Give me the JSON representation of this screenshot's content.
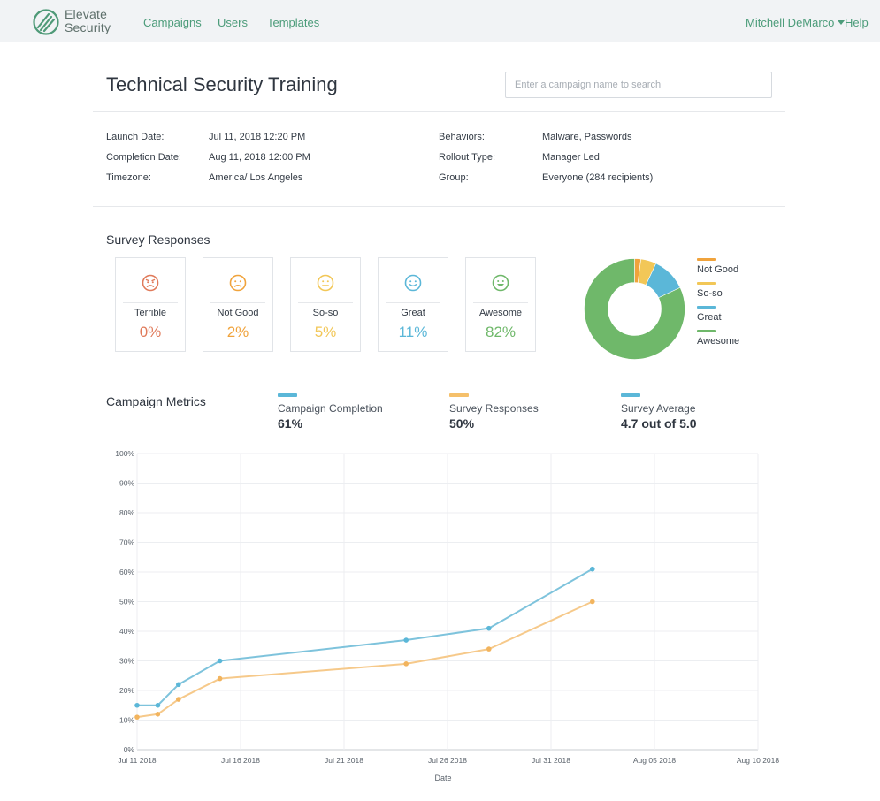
{
  "header": {
    "logo_line1": "Elevate",
    "logo_line2": "Security",
    "nav": [
      "Campaigns",
      "Users",
      "Templates"
    ],
    "user_name": "Mitchell DeMarco",
    "help": "Help"
  },
  "page": {
    "title": "Technical Security Training",
    "search_placeholder": "Enter a campaign name to search"
  },
  "details": {
    "left": [
      {
        "label": "Launch Date:",
        "value": "Jul 11, 2018 12:20 PM"
      },
      {
        "label": "Completion Date:",
        "value": "Aug 11, 2018 12:00 PM"
      },
      {
        "label": "Timezone:",
        "value": "America/ Los Angeles"
      }
    ],
    "right": [
      {
        "label": "Behaviors:",
        "value": "Malware, Passwords"
      },
      {
        "label": "Rollout Type:",
        "value": "Manager Led"
      },
      {
        "label": "Group:",
        "value": "Everyone (284 recipients)"
      }
    ]
  },
  "survey": {
    "title": "Survey Responses",
    "cards": [
      {
        "label": "Terrible",
        "percent": "0%",
        "value": 0,
        "color": "#e07a5a",
        "icon": "frown-face-icon"
      },
      {
        "label": "Not Good",
        "percent": "2%",
        "value": 2,
        "color": "#f0a33c",
        "icon": "sad-face-icon"
      },
      {
        "label": "So-so",
        "percent": "5%",
        "value": 5,
        "color": "#f2c757",
        "icon": "neutral-face-icon"
      },
      {
        "label": "Great",
        "percent": "11%",
        "value": 11,
        "color": "#5bb7d8",
        "icon": "smile-face-icon"
      },
      {
        "label": "Awesome",
        "percent": "82%",
        "value": 82,
        "color": "#6fb86a",
        "icon": "grin-face-icon"
      }
    ],
    "legend": [
      {
        "label": "Not Good",
        "color": "#f0a33c"
      },
      {
        "label": "So-so",
        "color": "#f2c757"
      },
      {
        "label": "Great",
        "color": "#5bb7d8"
      },
      {
        "label": "Awesome",
        "color": "#6fb86a"
      }
    ]
  },
  "metrics": {
    "title": "Campaign Metrics",
    "items": [
      {
        "label": "Campaign Completion",
        "value": "61%",
        "color": "#5bb7d8"
      },
      {
        "label": "Survey Responses",
        "value": "50%",
        "color": "#f5c06b"
      },
      {
        "label": "Survey Average",
        "value": "4.7 out of 5.0",
        "color": "#5bb7d8"
      }
    ]
  },
  "chart_data": {
    "type": "line",
    "xlabel": "Date",
    "ylabel": "",
    "ylim": [
      0,
      100
    ],
    "xlim": [
      "2018-07-11",
      "2018-08-10"
    ],
    "y_ticks": [
      "0%",
      "10%",
      "20%",
      "30%",
      "40%",
      "50%",
      "60%",
      "70%",
      "80%",
      "90%",
      "100%"
    ],
    "x_ticks": [
      "Jul 11 2018",
      "Jul 16 2018",
      "Jul 21 2018",
      "Jul 26 2018",
      "Jul 31 2018",
      "Aug 05 2018",
      "Aug 10 2018"
    ],
    "x_tick_dates": [
      "2018-07-11",
      "2018-07-16",
      "2018-07-21",
      "2018-07-26",
      "2018-07-31",
      "2018-08-05",
      "2018-08-10"
    ],
    "grid": true,
    "series": [
      {
        "color": "#7ec3dc",
        "points": [
          {
            "x": "2018-07-11",
            "y": 15
          },
          {
            "x": "2018-07-12",
            "y": 15
          },
          {
            "x": "2018-07-13",
            "y": 22
          },
          {
            "x": "2018-07-15",
            "y": 30
          },
          {
            "x": "2018-07-24",
            "y": 37
          },
          {
            "x": "2018-07-28",
            "y": 41
          },
          {
            "x": "2018-08-02",
            "y": 61
          }
        ]
      },
      {
        "color": "#f6c98a",
        "points": [
          {
            "x": "2018-07-11",
            "y": 11
          },
          {
            "x": "2018-07-12",
            "y": 12
          },
          {
            "x": "2018-07-13",
            "y": 17
          },
          {
            "x": "2018-07-15",
            "y": 24
          },
          {
            "x": "2018-07-24",
            "y": 29
          },
          {
            "x": "2018-07-28",
            "y": 34
          },
          {
            "x": "2018-08-02",
            "y": 50
          }
        ]
      }
    ]
  }
}
